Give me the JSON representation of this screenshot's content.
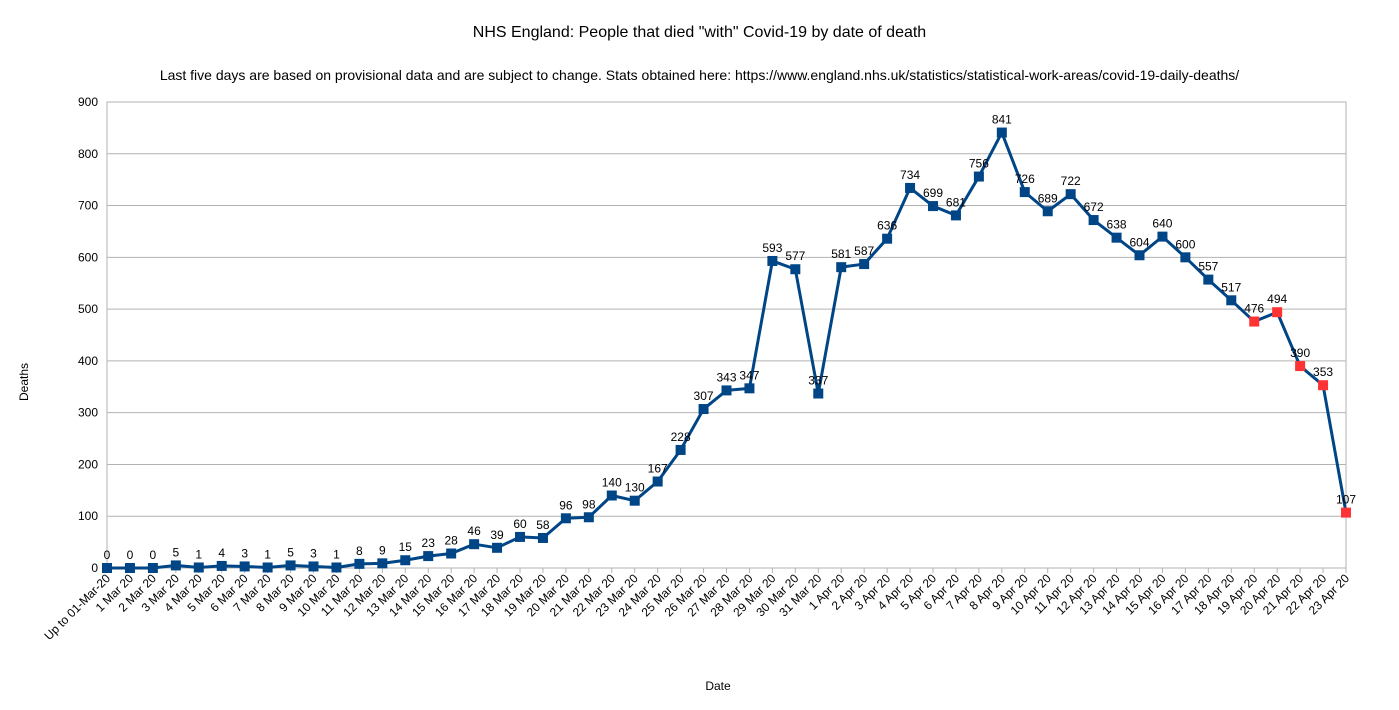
{
  "chart_data": {
    "type": "line",
    "title": "NHS England: People that died \"with\" Covid-19 by date of death",
    "subtitle": "Last five days are based on provisional data and are subject to change. Stats obtained here: https://www.england.nhs.uk/statistics/statistical-work-areas/covid-19-daily-deaths/",
    "xlabel": "Date",
    "ylabel": "Deaths",
    "ylim": [
      0,
      900
    ],
    "yticks": [
      0,
      100,
      200,
      300,
      400,
      500,
      600,
      700,
      800,
      900
    ],
    "grid": true,
    "legend": "none",
    "categories": [
      "Up to 01-Mar-20",
      "1 Mar 20",
      "2 Mar 20",
      "3 Mar 20",
      "4 Mar 20",
      "5 Mar 20",
      "6 Mar 20",
      "7 Mar 20",
      "8 Mar 20",
      "9 Mar 20",
      "10 Mar 20",
      "11 Mar 20",
      "12 Mar 20",
      "13 Mar 20",
      "14 Mar 20",
      "15 Mar 20",
      "16 Mar 20",
      "17 Mar 20",
      "18 Mar 20",
      "19 Mar 20",
      "20 Mar 20",
      "21 Mar 20",
      "22 Mar 20",
      "23 Mar 20",
      "24 Mar 20",
      "25 Mar 20",
      "26 Mar 20",
      "27 Mar 20",
      "28 Mar 20",
      "29 Mar 20",
      "30 Mar 20",
      "31 Mar 20",
      "1 Apr 20",
      "2 Apr 20",
      "3 Apr 20",
      "4 Apr 20",
      "5 Apr 20",
      "6 Apr 20",
      "7 Apr 20",
      "8 Apr 20",
      "9 Apr 20",
      "10 Apr 20",
      "11 Apr 20",
      "12 Apr 20",
      "13 Apr 20",
      "14 Apr 20",
      "15 Apr 20",
      "16 Apr 20",
      "17 Apr 20",
      "18 Apr 20",
      "19 Apr 20",
      "20 Apr 20",
      "21 Apr 20",
      "22 Apr 20",
      "23 Apr 20"
    ],
    "series": [
      {
        "values": [
          0,
          0,
          0,
          5,
          1,
          4,
          3,
          1,
          5,
          3,
          1,
          8,
          9,
          15,
          23,
          28,
          46,
          39,
          60,
          58,
          96,
          98,
          140,
          130,
          167,
          228,
          307,
          343,
          347,
          593,
          577,
          337,
          581,
          587,
          636,
          734,
          699,
          681,
          756,
          841,
          726,
          689,
          722,
          672,
          638,
          604,
          640,
          600,
          557,
          517,
          476,
          494,
          390,
          353,
          107
        ],
        "line_color": "#004586",
        "marker_color": "#004586",
        "provisional_marker_color": "#ff3333",
        "provisional_last_n": 5
      }
    ]
  }
}
